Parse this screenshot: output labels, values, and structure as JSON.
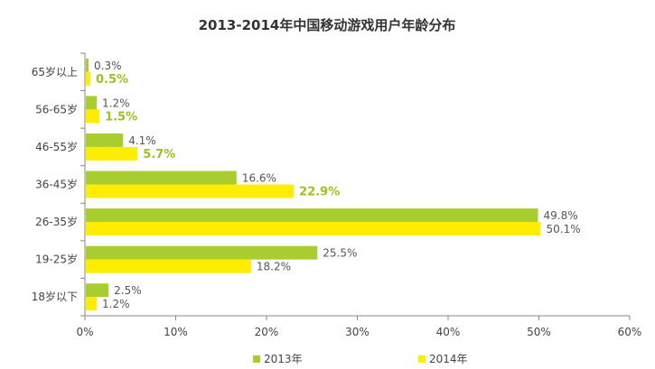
{
  "chart_data": {
    "type": "bar",
    "orientation": "horizontal",
    "title": "2013-2014年中国移动游戏用户年龄分布",
    "categories": [
      "65岁以上",
      "56-65岁",
      "46-55岁",
      "36-45岁",
      "26-35岁",
      "19-25岁",
      "18岁以下"
    ],
    "series": [
      {
        "name": "2013年",
        "color": "#a9cd2e",
        "values": [
          0.3,
          1.2,
          4.1,
          16.6,
          49.8,
          25.5,
          2.5
        ],
        "labels": [
          "0.3%",
          "1.2%",
          "4.1%",
          "16.6%",
          "49.8%",
          "25.5%",
          "2.5%"
        ]
      },
      {
        "name": "2014年",
        "color": "#ffed00",
        "values": [
          0.5,
          1.5,
          5.7,
          22.9,
          50.1,
          18.2,
          1.2
        ],
        "labels": [
          "0.5%",
          "1.5%",
          "5.7%",
          "22.9%",
          "50.1%",
          "18.2%",
          "1.2%"
        ],
        "bold_labels": [
          true,
          true,
          true,
          true,
          false,
          false,
          false
        ]
      }
    ],
    "xlim": [
      0,
      60
    ],
    "xticks": [
      0,
      10,
      20,
      30,
      40,
      50,
      60
    ],
    "xtick_labels": [
      "0%",
      "10%",
      "20%",
      "30%",
      "40%",
      "50%",
      "60%"
    ],
    "legend_position": "bottom",
    "grid": false
  }
}
